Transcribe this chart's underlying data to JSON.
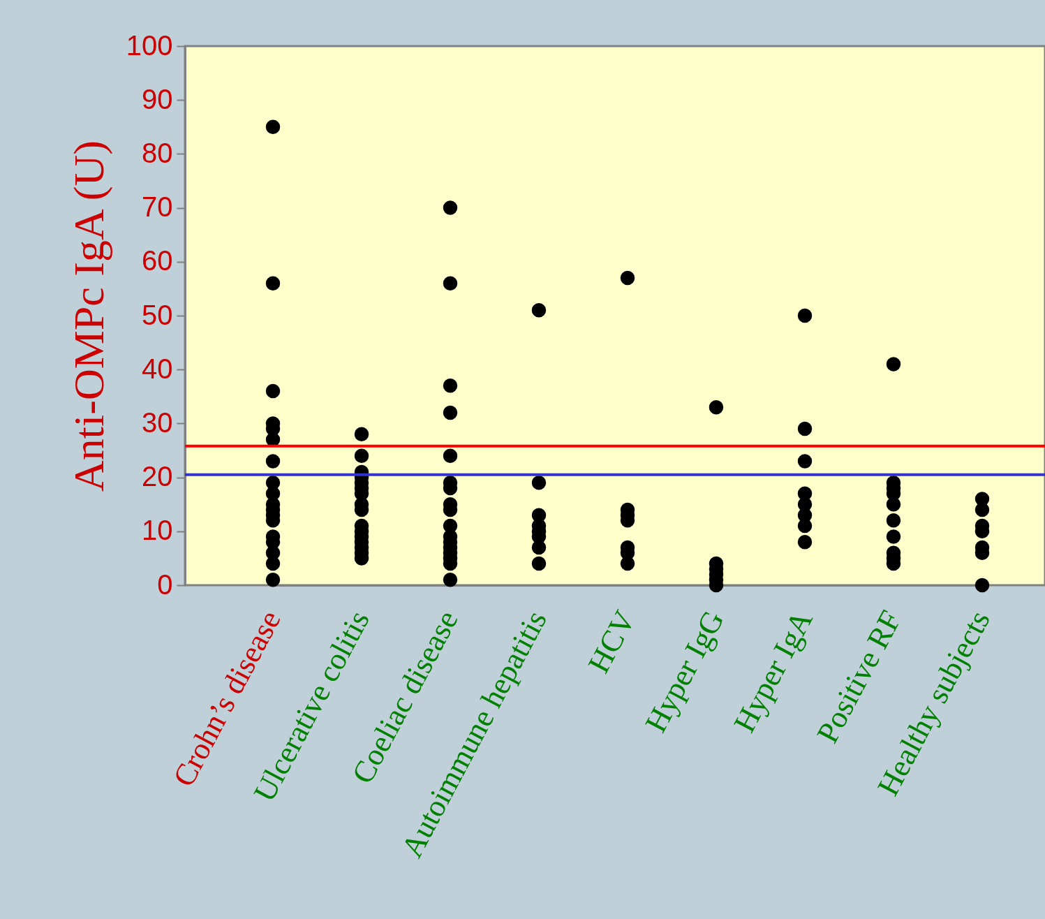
{
  "chart_data": {
    "type": "scatter",
    "ylabel": "Anti-OMPc IgA (U)",
    "categories": [
      "Crohn’s disease",
      "Ulcerative colitis",
      "Coeliac disease",
      "Autoimmune hepatitis",
      "HCV",
      "Hyper IgG",
      "Hyper IgA",
      "Positive RF",
      "Healthy subjects"
    ],
    "series": [
      {
        "color": "#000000",
        "x": [
          "Crohn’s disease",
          "Crohn’s disease",
          "Crohn’s disease",
          "Crohn’s disease",
          "Crohn’s disease",
          "Crohn’s disease",
          "Crohn’s disease",
          "Crohn’s disease",
          "Crohn’s disease",
          "Crohn’s disease",
          "Crohn’s disease",
          "Crohn’s disease",
          "Crohn’s disease",
          "Crohn’s disease",
          "Crohn’s disease",
          "Crohn’s disease",
          "Crohn’s disease",
          "Crohn’s disease",
          "Ulcerative colitis",
          "Ulcerative colitis",
          "Ulcerative colitis",
          "Ulcerative colitis",
          "Ulcerative colitis",
          "Ulcerative colitis",
          "Ulcerative colitis",
          "Ulcerative colitis",
          "Ulcerative colitis",
          "Ulcerative colitis",
          "Ulcerative colitis",
          "Ulcerative colitis",
          "Ulcerative colitis",
          "Ulcerative colitis",
          "Ulcerative colitis",
          "Ulcerative colitis",
          "Coeliac disease",
          "Coeliac disease",
          "Coeliac disease",
          "Coeliac disease",
          "Coeliac disease",
          "Coeliac disease",
          "Coeliac disease",
          "Coeliac disease",
          "Coeliac disease",
          "Coeliac disease",
          "Coeliac disease",
          "Coeliac disease",
          "Coeliac disease",
          "Coeliac disease",
          "Coeliac disease",
          "Coeliac disease",
          "Coeliac disease",
          "Autoimmune hepatitis",
          "Autoimmune hepatitis",
          "Autoimmune hepatitis",
          "Autoimmune hepatitis",
          "Autoimmune hepatitis",
          "Autoimmune hepatitis",
          "Autoimmune hepatitis",
          "Autoimmune hepatitis",
          "HCV",
          "HCV",
          "HCV",
          "HCV",
          "HCV",
          "HCV",
          "HCV",
          "Hyper IgG",
          "Hyper IgG",
          "Hyper IgG",
          "Hyper IgG",
          "Hyper IgG",
          "Hyper IgG",
          "Hyper IgA",
          "Hyper IgA",
          "Hyper IgA",
          "Hyper IgA",
          "Hyper IgA",
          "Hyper IgA",
          "Hyper IgA",
          "Hyper IgA",
          "Positive RF",
          "Positive RF",
          "Positive RF",
          "Positive RF",
          "Positive RF",
          "Positive RF",
          "Positive RF",
          "Positive RF",
          "Positive RF",
          "Positive RF",
          "Healthy subjects",
          "Healthy subjects",
          "Healthy subjects",
          "Healthy subjects",
          "Healthy subjects",
          "Healthy subjects",
          "Healthy subjects"
        ],
        "values": [
          85,
          56,
          36,
          30,
          29,
          27,
          23,
          19,
          17,
          15,
          14,
          13,
          12,
          9,
          8,
          6,
          4,
          1,
          28,
          24,
          21,
          20,
          19,
          18,
          17,
          15,
          14,
          11,
          10,
          9,
          8,
          7,
          6,
          5,
          70,
          56,
          37,
          32,
          24,
          19,
          18,
          15,
          14,
          11,
          9,
          8,
          7,
          6,
          5,
          4,
          1,
          51,
          19,
          13,
          11,
          10,
          9,
          7,
          4,
          57,
          14,
          13,
          12,
          7,
          6,
          4,
          33,
          4,
          3,
          2,
          1,
          0,
          50,
          29,
          23,
          17,
          15,
          13,
          11,
          8,
          41,
          19,
          18,
          17,
          15,
          12,
          9,
          6,
          5,
          4,
          16,
          14,
          11,
          10,
          7,
          6,
          0
        ]
      }
    ],
    "ylim": [
      0,
      100
    ],
    "yticks": [
      0,
      10,
      20,
      30,
      40,
      50,
      60,
      70,
      80,
      90,
      100
    ],
    "ref_lines": [
      {
        "axis": "y",
        "value": 25.8,
        "color": "#ff0000"
      },
      {
        "axis": "y",
        "value": 20.5,
        "color": "#3333cc"
      }
    ],
    "marker": "circle"
  }
}
